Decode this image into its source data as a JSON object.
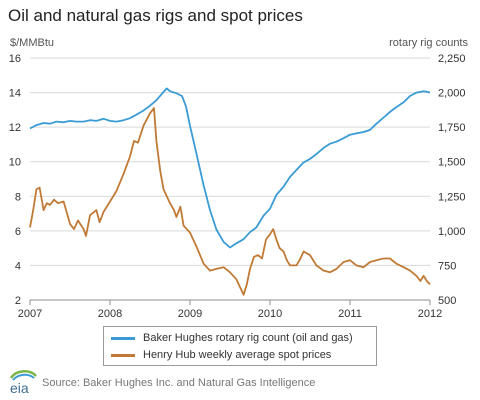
{
  "header": {
    "title": "Oil and natural gas rigs and spot prices",
    "left_unit": "$/MMBtu",
    "right_unit": "rotary rig counts"
  },
  "footer": {
    "logo_text": "eia",
    "source": "Source: Baker Hughes Inc. and Natural Gas Intelligence"
  },
  "colors": {
    "rigs": "#3a9bd5",
    "gas": "#c07a35",
    "grid": "#d9d9d9",
    "axis": "#8c8c8c"
  },
  "chart_data": {
    "type": "line",
    "xlim": [
      2007,
      2012
    ],
    "x_ticks": [
      "2007",
      "2008",
      "2009",
      "2010",
      "2011",
      "2012"
    ],
    "y_left": {
      "range": [
        2,
        16
      ],
      "ticks": [
        "2",
        "4",
        "6",
        "8",
        "10",
        "12",
        "14",
        "16"
      ]
    },
    "y_right": {
      "range": [
        500,
        2250
      ],
      "ticks": [
        "500",
        "750",
        "1,000",
        "1,250",
        "1,500",
        "1,750",
        "2,000",
        "2,250"
      ]
    },
    "grid": true,
    "legend_position": "bottom",
    "series": [
      {
        "name": "Baker Hughes rotary rig count (oil and gas)",
        "axis": "right",
        "points": [
          [
            2007.0,
            1740
          ],
          [
            2007.08,
            1765
          ],
          [
            2007.17,
            1780
          ],
          [
            2007.25,
            1775
          ],
          [
            2007.33,
            1790
          ],
          [
            2007.42,
            1785
          ],
          [
            2007.5,
            1795
          ],
          [
            2007.58,
            1790
          ],
          [
            2007.67,
            1790
          ],
          [
            2007.75,
            1800
          ],
          [
            2007.83,
            1795
          ],
          [
            2007.92,
            1810
          ],
          [
            2008.0,
            1795
          ],
          [
            2008.08,
            1790
          ],
          [
            2008.17,
            1800
          ],
          [
            2008.25,
            1815
          ],
          [
            2008.33,
            1840
          ],
          [
            2008.42,
            1870
          ],
          [
            2008.5,
            1905
          ],
          [
            2008.58,
            1945
          ],
          [
            2008.67,
            2005
          ],
          [
            2008.71,
            2030
          ],
          [
            2008.75,
            2010
          ],
          [
            2008.83,
            1995
          ],
          [
            2008.9,
            1975
          ],
          [
            2008.95,
            1900
          ],
          [
            2009.0,
            1760
          ],
          [
            2009.08,
            1560
          ],
          [
            2009.17,
            1330
          ],
          [
            2009.25,
            1150
          ],
          [
            2009.33,
            1010
          ],
          [
            2009.42,
            920
          ],
          [
            2009.5,
            880
          ],
          [
            2009.58,
            910
          ],
          [
            2009.67,
            940
          ],
          [
            2009.75,
            990
          ],
          [
            2009.83,
            1025
          ],
          [
            2009.92,
            1110
          ],
          [
            2010.0,
            1160
          ],
          [
            2010.08,
            1260
          ],
          [
            2010.17,
            1320
          ],
          [
            2010.25,
            1390
          ],
          [
            2010.33,
            1440
          ],
          [
            2010.42,
            1495
          ],
          [
            2010.5,
            1520
          ],
          [
            2010.58,
            1555
          ],
          [
            2010.67,
            1600
          ],
          [
            2010.75,
            1630
          ],
          [
            2010.83,
            1645
          ],
          [
            2010.92,
            1670
          ],
          [
            2011.0,
            1695
          ],
          [
            2011.08,
            1705
          ],
          [
            2011.17,
            1715
          ],
          [
            2011.25,
            1730
          ],
          [
            2011.33,
            1775
          ],
          [
            2011.42,
            1820
          ],
          [
            2011.5,
            1860
          ],
          [
            2011.58,
            1895
          ],
          [
            2011.67,
            1930
          ],
          [
            2011.75,
            1975
          ],
          [
            2011.83,
            2000
          ],
          [
            2011.92,
            2010
          ],
          [
            2011.97,
            2005
          ],
          [
            2012.0,
            2000
          ]
        ]
      },
      {
        "name": "Henry Hub weekly average spot prices",
        "axis": "left",
        "points": [
          [
            2007.0,
            6.2
          ],
          [
            2007.04,
            7.2
          ],
          [
            2007.08,
            8.4
          ],
          [
            2007.12,
            8.5
          ],
          [
            2007.17,
            7.2
          ],
          [
            2007.21,
            7.6
          ],
          [
            2007.25,
            7.5
          ],
          [
            2007.3,
            7.8
          ],
          [
            2007.35,
            7.6
          ],
          [
            2007.42,
            7.7
          ],
          [
            2007.5,
            6.4
          ],
          [
            2007.55,
            6.1
          ],
          [
            2007.6,
            6.6
          ],
          [
            2007.67,
            6.1
          ],
          [
            2007.7,
            5.7
          ],
          [
            2007.75,
            6.9
          ],
          [
            2007.83,
            7.2
          ],
          [
            2007.87,
            6.5
          ],
          [
            2007.92,
            7.1
          ],
          [
            2008.0,
            7.7
          ],
          [
            2008.08,
            8.3
          ],
          [
            2008.17,
            9.3
          ],
          [
            2008.25,
            10.3
          ],
          [
            2008.3,
            11.2
          ],
          [
            2008.35,
            11.1
          ],
          [
            2008.42,
            12.1
          ],
          [
            2008.5,
            12.8
          ],
          [
            2008.55,
            13.1
          ],
          [
            2008.58,
            11.2
          ],
          [
            2008.63,
            9.4
          ],
          [
            2008.67,
            8.4
          ],
          [
            2008.75,
            7.6
          ],
          [
            2008.8,
            7.2
          ],
          [
            2008.83,
            6.8
          ],
          [
            2008.88,
            7.4
          ],
          [
            2008.92,
            6.3
          ],
          [
            2009.0,
            5.9
          ],
          [
            2009.08,
            5.1
          ],
          [
            2009.17,
            4.1
          ],
          [
            2009.25,
            3.7
          ],
          [
            2009.33,
            3.8
          ],
          [
            2009.42,
            3.9
          ],
          [
            2009.5,
            3.6
          ],
          [
            2009.58,
            3.2
          ],
          [
            2009.62,
            2.8
          ],
          [
            2009.67,
            2.3
          ],
          [
            2009.71,
            2.9
          ],
          [
            2009.75,
            3.8
          ],
          [
            2009.8,
            4.5
          ],
          [
            2009.85,
            4.6
          ],
          [
            2009.9,
            4.4
          ],
          [
            2009.95,
            5.5
          ],
          [
            2010.0,
            5.8
          ],
          [
            2010.04,
            6.1
          ],
          [
            2010.08,
            5.5
          ],
          [
            2010.12,
            5.0
          ],
          [
            2010.17,
            4.8
          ],
          [
            2010.21,
            4.3
          ],
          [
            2010.25,
            4.0
          ],
          [
            2010.33,
            4.0
          ],
          [
            2010.38,
            4.4
          ],
          [
            2010.42,
            4.8
          ],
          [
            2010.5,
            4.6
          ],
          [
            2010.58,
            4.0
          ],
          [
            2010.67,
            3.7
          ],
          [
            2010.75,
            3.6
          ],
          [
            2010.83,
            3.8
          ],
          [
            2010.92,
            4.2
          ],
          [
            2011.0,
            4.3
          ],
          [
            2011.08,
            4.0
          ],
          [
            2011.17,
            3.9
          ],
          [
            2011.25,
            4.2
          ],
          [
            2011.33,
            4.3
          ],
          [
            2011.42,
            4.4
          ],
          [
            2011.5,
            4.4
          ],
          [
            2011.58,
            4.1
          ],
          [
            2011.67,
            3.9
          ],
          [
            2011.75,
            3.7
          ],
          [
            2011.83,
            3.4
          ],
          [
            2011.88,
            3.1
          ],
          [
            2011.92,
            3.4
          ],
          [
            2011.96,
            3.1
          ],
          [
            2012.0,
            2.9
          ]
        ]
      }
    ]
  }
}
